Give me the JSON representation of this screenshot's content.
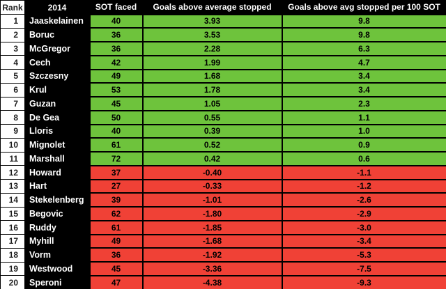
{
  "header": {
    "columns": [
      "Rank",
      "2014",
      "SOT faced",
      "Goals above average stopped",
      "Goals above avg stopped per 100 SOT"
    ]
  },
  "rows": [
    {
      "rank": "1",
      "name": "Jaaskelainen",
      "sot_faced": "40",
      "goals_above_avg": "3.93",
      "per_100_sot": "9.8",
      "status": "positive"
    },
    {
      "rank": "2",
      "name": "Boruc",
      "sot_faced": "36",
      "goals_above_avg": "3.53",
      "per_100_sot": "9.8",
      "status": "positive"
    },
    {
      "rank": "3",
      "name": "McGregor",
      "sot_faced": "36",
      "goals_above_avg": "2.28",
      "per_100_sot": "6.3",
      "status": "positive"
    },
    {
      "rank": "4",
      "name": "Cech",
      "sot_faced": "42",
      "goals_above_avg": "1.99",
      "per_100_sot": "4.7",
      "status": "positive"
    },
    {
      "rank": "5",
      "name": "Szczesny",
      "sot_faced": "49",
      "goals_above_avg": "1.68",
      "per_100_sot": "3.4",
      "status": "positive"
    },
    {
      "rank": "6",
      "name": "Krul",
      "sot_faced": "53",
      "goals_above_avg": "1.78",
      "per_100_sot": "3.4",
      "status": "positive"
    },
    {
      "rank": "7",
      "name": "Guzan",
      "sot_faced": "45",
      "goals_above_avg": "1.05",
      "per_100_sot": "2.3",
      "status": "positive"
    },
    {
      "rank": "8",
      "name": "De Gea",
      "sot_faced": "50",
      "goals_above_avg": "0.55",
      "per_100_sot": "1.1",
      "status": "positive"
    },
    {
      "rank": "9",
      "name": "Lloris",
      "sot_faced": "40",
      "goals_above_avg": "0.39",
      "per_100_sot": "1.0",
      "status": "positive"
    },
    {
      "rank": "10",
      "name": "Mignolet",
      "sot_faced": "61",
      "goals_above_avg": "0.52",
      "per_100_sot": "0.9",
      "status": "positive"
    },
    {
      "rank": "11",
      "name": "Marshall",
      "sot_faced": "72",
      "goals_above_avg": "0.42",
      "per_100_sot": "0.6",
      "status": "positive"
    },
    {
      "rank": "12",
      "name": "Howard",
      "sot_faced": "37",
      "goals_above_avg": "-0.40",
      "per_100_sot": "-1.1",
      "status": "negative"
    },
    {
      "rank": "13",
      "name": "Hart",
      "sot_faced": "27",
      "goals_above_avg": "-0.33",
      "per_100_sot": "-1.2",
      "status": "negative"
    },
    {
      "rank": "14",
      "name": "Stekelenberg",
      "sot_faced": "39",
      "goals_above_avg": "-1.01",
      "per_100_sot": "-2.6",
      "status": "negative"
    },
    {
      "rank": "15",
      "name": "Begovic",
      "sot_faced": "62",
      "goals_above_avg": "-1.80",
      "per_100_sot": "-2.9",
      "status": "negative"
    },
    {
      "rank": "16",
      "name": "Ruddy",
      "sot_faced": "61",
      "goals_above_avg": "-1.85",
      "per_100_sot": "-3.0",
      "status": "negative"
    },
    {
      "rank": "17",
      "name": "Myhill",
      "sot_faced": "49",
      "goals_above_avg": "-1.68",
      "per_100_sot": "-3.4",
      "status": "negative"
    },
    {
      "rank": "18",
      "name": "Vorm",
      "sot_faced": "36",
      "goals_above_avg": "-1.92",
      "per_100_sot": "-5.3",
      "status": "negative"
    },
    {
      "rank": "19",
      "name": "Westwood",
      "sot_faced": "45",
      "goals_above_avg": "-3.36",
      "per_100_sot": "-7.5",
      "status": "negative"
    },
    {
      "rank": "20",
      "name": "Speroni",
      "sot_faced": "47",
      "goals_above_avg": "-4.38",
      "per_100_sot": "-9.3",
      "status": "negative"
    }
  ],
  "colors": {
    "positive_bg": "#6EC33C",
    "negative_bg": "#F04136",
    "header_bg": "#000000",
    "header_text": "#FFFFFF",
    "rank_bg": "#FFFFFF",
    "name_bg": "#000000",
    "name_text": "#FFFFFF",
    "value_text": "#000000"
  },
  "chart_data": {
    "type": "table",
    "title": "2014 goalkeeper shot-stopping",
    "columns": [
      "Rank",
      "2014",
      "SOT faced",
      "Goals above average stopped",
      "Goals above avg stopped per 100 SOT"
    ],
    "series": [
      {
        "name": "SOT faced",
        "values": [
          40,
          36,
          36,
          42,
          49,
          53,
          45,
          50,
          40,
          61,
          72,
          37,
          27,
          39,
          62,
          61,
          49,
          36,
          45,
          47
        ]
      },
      {
        "name": "Goals above average stopped",
        "values": [
          3.93,
          3.53,
          2.28,
          1.99,
          1.68,
          1.78,
          1.05,
          0.55,
          0.39,
          0.52,
          0.42,
          -0.4,
          -0.33,
          -1.01,
          -1.8,
          -1.85,
          -1.68,
          -1.92,
          -3.36,
          -4.38
        ]
      },
      {
        "name": "Goals above avg stopped per 100 SOT",
        "values": [
          9.8,
          9.8,
          6.3,
          4.7,
          3.4,
          3.4,
          2.3,
          1.1,
          1.0,
          0.9,
          0.6,
          -1.1,
          -1.2,
          -2.6,
          -2.9,
          -3.0,
          -3.4,
          -5.3,
          -7.5,
          -9.3
        ]
      }
    ],
    "categories": [
      "Jaaskelainen",
      "Boruc",
      "McGregor",
      "Cech",
      "Szczesny",
      "Krul",
      "Guzan",
      "De Gea",
      "Lloris",
      "Mignolet",
      "Marshall",
      "Howard",
      "Hart",
      "Stekelenberg",
      "Begovic",
      "Ruddy",
      "Myhill",
      "Vorm",
      "Westwood",
      "Speroni"
    ],
    "layout_hints": {
      "positive_rows_highlighted": "green",
      "negative_rows_highlighted": "red",
      "grid": true
    }
  }
}
